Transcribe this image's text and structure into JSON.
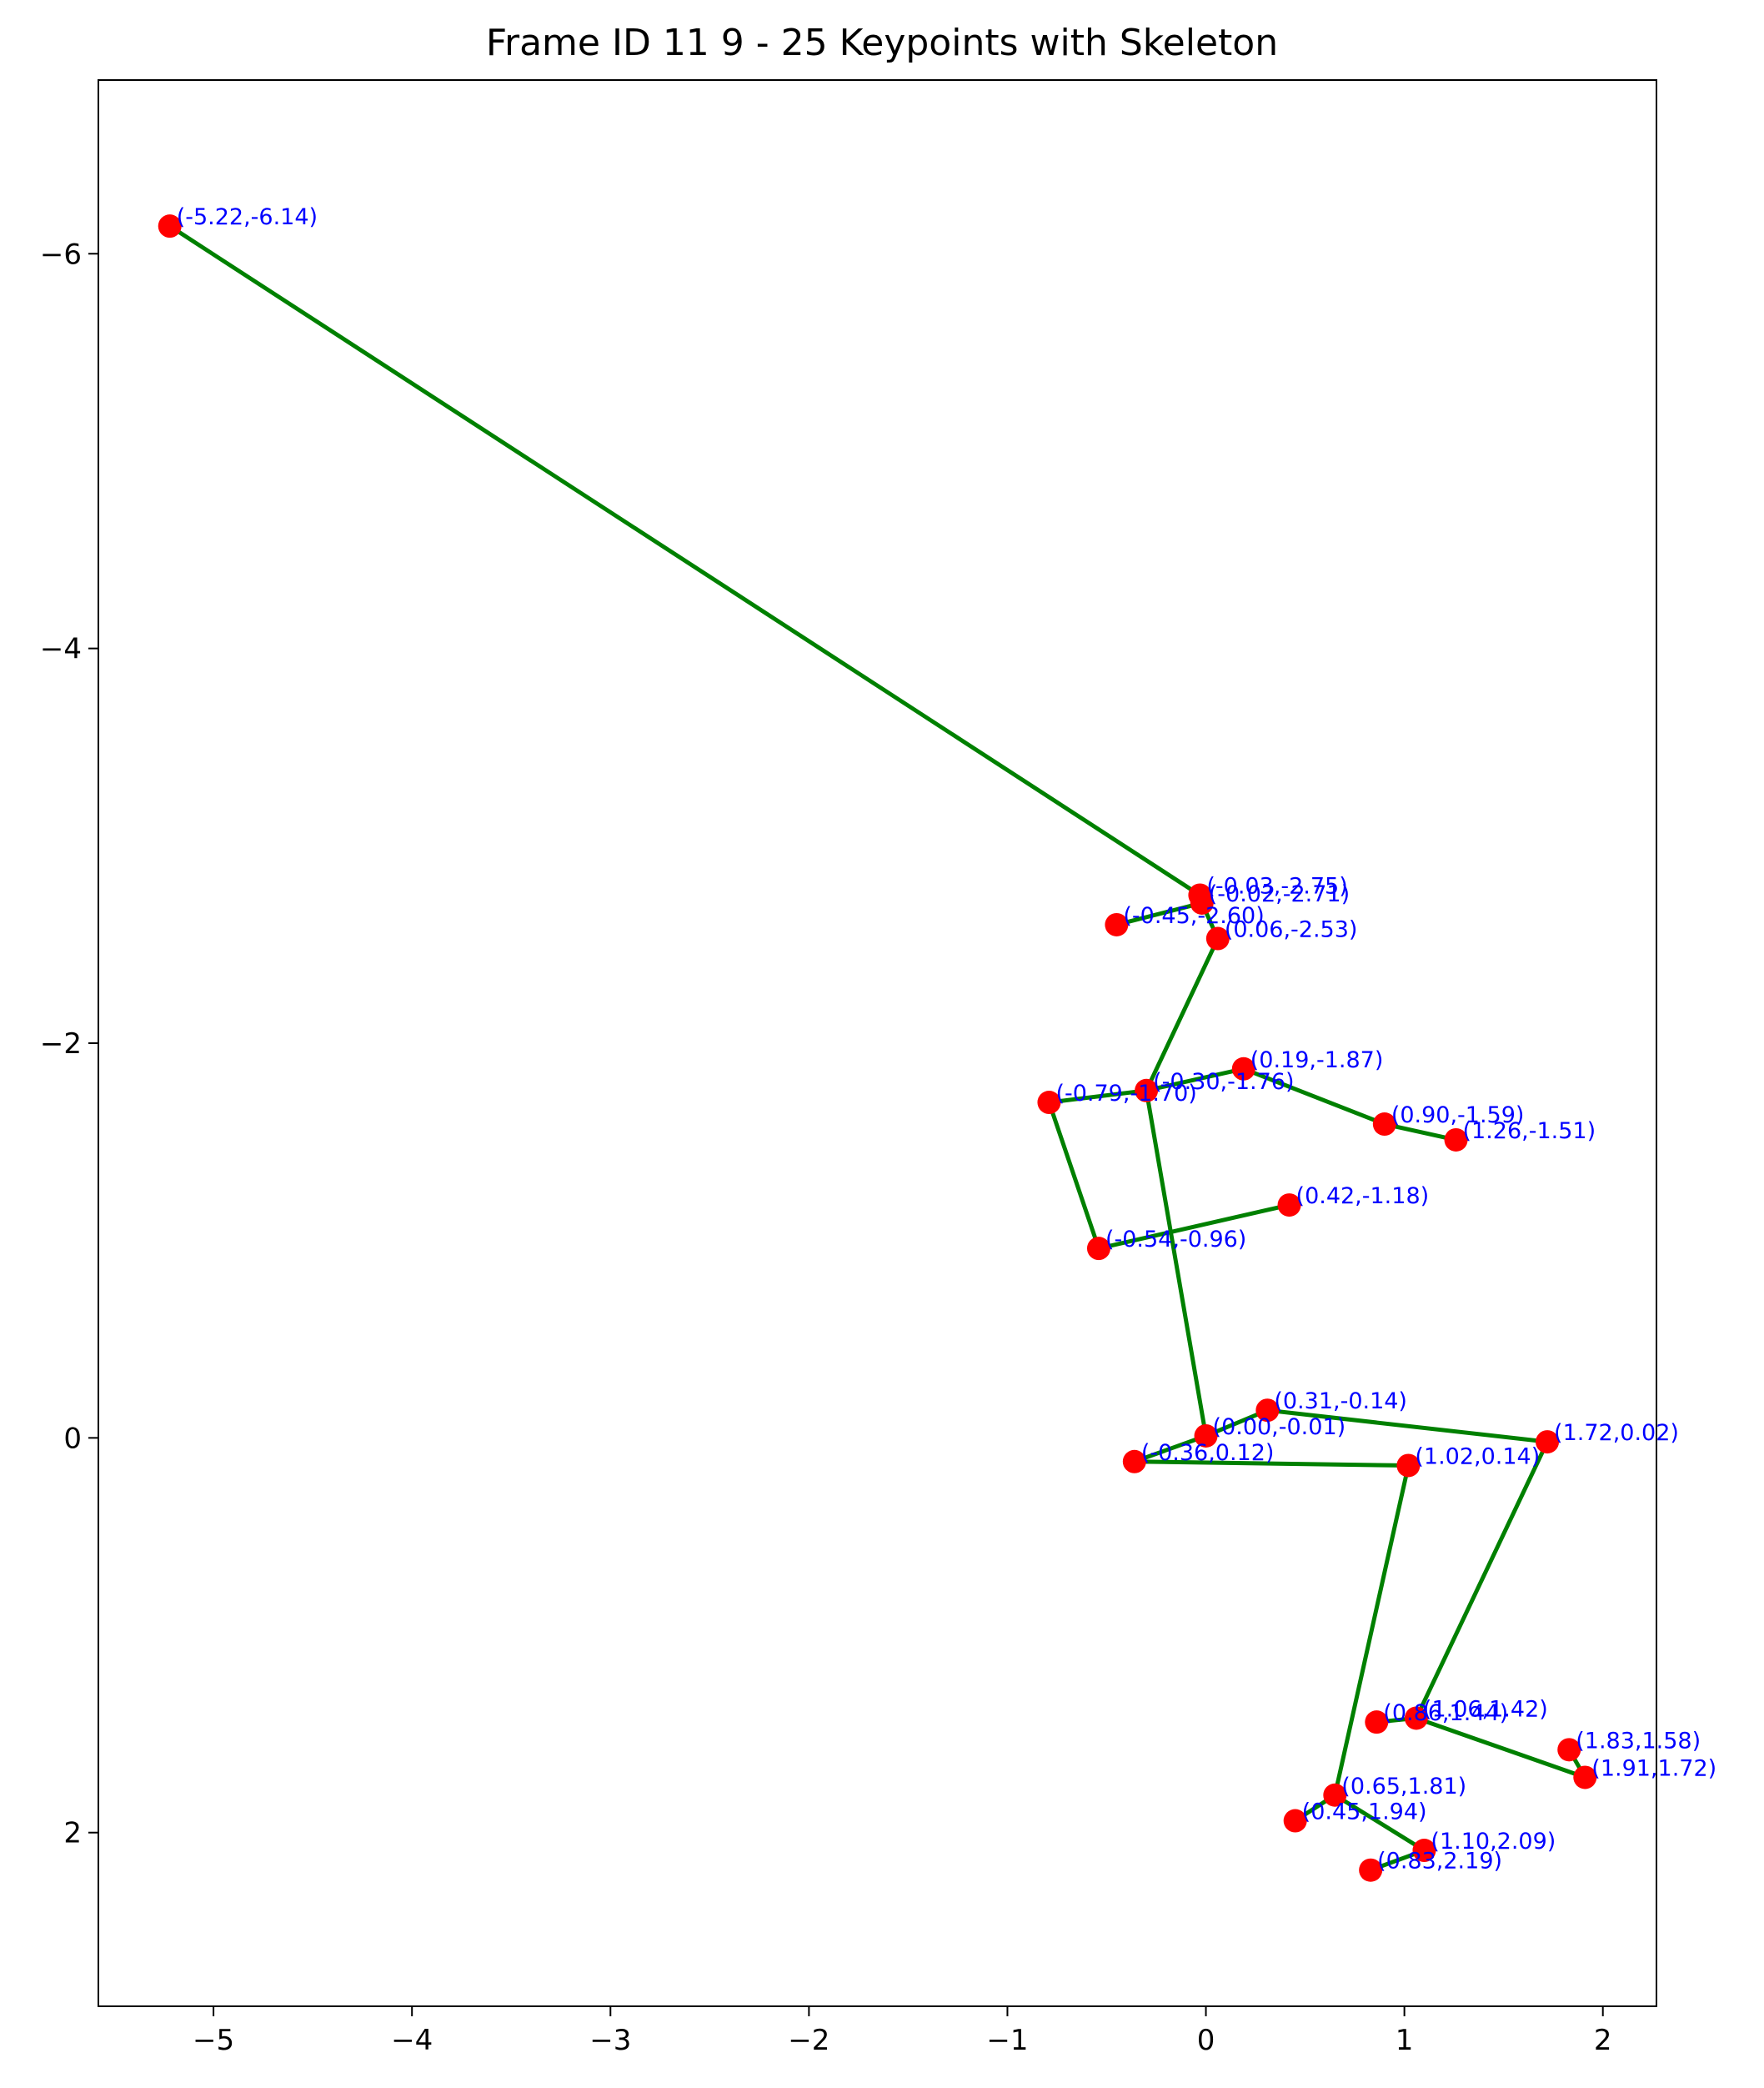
{
  "chart_data": {
    "type": "scatter",
    "title": "Frame ID 11 9 - 25 Keypoints with Skeleton",
    "xlabel": "",
    "ylabel": "",
    "xlim": [
      -5.58,
      2.27
    ],
    "ylim": [
      2.88,
      -6.88
    ],
    "y_inverted": true,
    "grid": false,
    "xticks": [
      -5,
      -4,
      -3,
      -2,
      -1,
      0,
      1,
      2
    ],
    "xtick_labels": [
      "−5",
      "−4",
      "−3",
      "−2",
      "−1",
      "0",
      "1",
      "2"
    ],
    "yticks": [
      -6,
      -4,
      -2,
      0,
      2
    ],
    "ytick_labels": [
      "−6",
      "−4",
      "−2",
      "0",
      "2"
    ],
    "colors": {
      "point": "#ff0000",
      "skeleton": "#008000",
      "label": "#0000ff"
    },
    "points": [
      {
        "x": -5.22,
        "y": -6.14,
        "label": "(-5.22,-6.14)"
      },
      {
        "x": -0.03,
        "y": -2.75,
        "label": "(-0.03,-2.75)"
      },
      {
        "x": -0.02,
        "y": -2.71,
        "label": "(-0.02,-2.71)"
      },
      {
        "x": -0.45,
        "y": -2.6,
        "label": "(-0.45,-2.60)"
      },
      {
        "x": 0.06,
        "y": -2.53,
        "label": "(0.06,-2.53)"
      },
      {
        "x": 0.19,
        "y": -1.87,
        "label": "(0.19,-1.87)"
      },
      {
        "x": -0.3,
        "y": -1.76,
        "label": "(-0.30,-1.76)"
      },
      {
        "x": -0.79,
        "y": -1.7,
        "label": "(-0.79,-1.70)"
      },
      {
        "x": 0.9,
        "y": -1.59,
        "label": "(0.90,-1.59)"
      },
      {
        "x": 1.26,
        "y": -1.51,
        "label": "(1.26,-1.51)"
      },
      {
        "x": 0.42,
        "y": -1.18,
        "label": "(0.42,-1.18)"
      },
      {
        "x": -0.54,
        "y": -0.96,
        "label": "(-0.54,-0.96)"
      },
      {
        "x": 0.31,
        "y": -0.14,
        "label": "(0.31,-0.14)"
      },
      {
        "x": 0.0,
        "y": -0.01,
        "label": "(0.00,-0.01)"
      },
      {
        "x": 1.72,
        "y": 0.02,
        "label": "(1.72,0.02)"
      },
      {
        "x": -0.36,
        "y": 0.12,
        "label": "(-0.36,0.12)"
      },
      {
        "x": 1.02,
        "y": 0.14,
        "label": "(1.02,0.14)"
      },
      {
        "x": 0.86,
        "y": 1.44,
        "label": "(0.86,1.44)"
      },
      {
        "x": 1.06,
        "y": 1.42,
        "label": "(1.06,1.42)"
      },
      {
        "x": 1.83,
        "y": 1.58,
        "label": "(1.83,1.58)"
      },
      {
        "x": 1.91,
        "y": 1.72,
        "label": "(1.91,1.72)"
      },
      {
        "x": 0.65,
        "y": 1.81,
        "label": "(0.65,1.81)"
      },
      {
        "x": 0.45,
        "y": 1.94,
        "label": "(0.45,1.94)"
      },
      {
        "x": 1.1,
        "y": 2.09,
        "label": "(1.10,2.09)"
      },
      {
        "x": 0.83,
        "y": 2.19,
        "label": "(0.83,2.19)"
      }
    ],
    "edges": [
      [
        0,
        1
      ],
      [
        1,
        2
      ],
      [
        2,
        3
      ],
      [
        2,
        4
      ],
      [
        4,
        6
      ],
      [
        6,
        5
      ],
      [
        5,
        8
      ],
      [
        8,
        9
      ],
      [
        6,
        7
      ],
      [
        7,
        11
      ],
      [
        11,
        10
      ],
      [
        6,
        13
      ],
      [
        13,
        12
      ],
      [
        12,
        14
      ],
      [
        13,
        15
      ],
      [
        15,
        16
      ],
      [
        14,
        18
      ],
      [
        18,
        17
      ],
      [
        18,
        20
      ],
      [
        20,
        19
      ],
      [
        16,
        21
      ],
      [
        21,
        22
      ],
      [
        21,
        23
      ],
      [
        23,
        24
      ]
    ]
  }
}
